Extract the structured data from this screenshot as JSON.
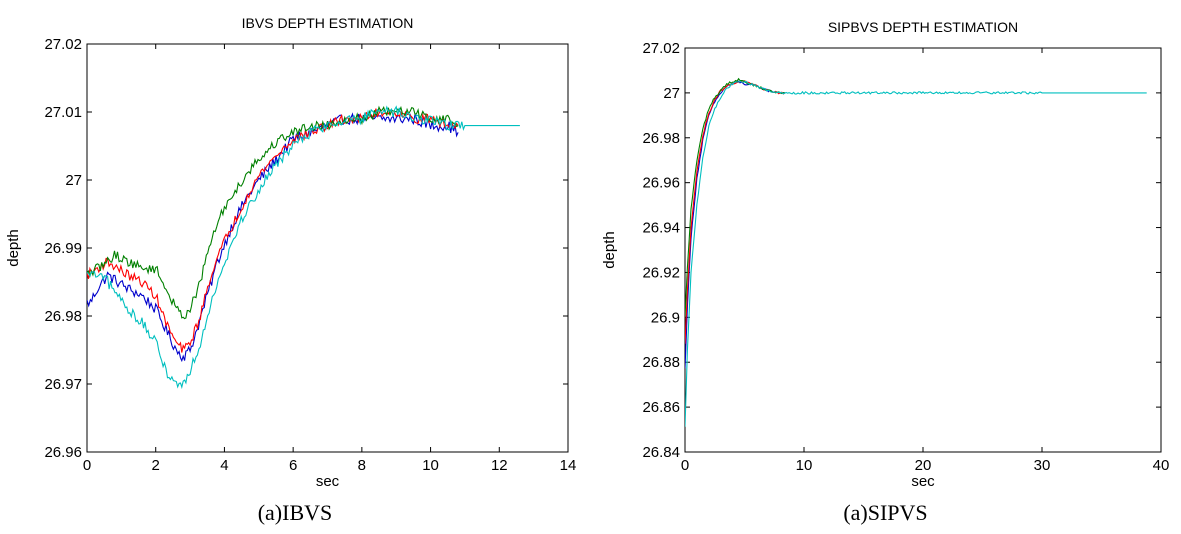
{
  "chart_data": [
    {
      "type": "line",
      "title": "IBVS DEPTH ESTIMATION",
      "xlabel": "sec",
      "ylabel": "depth",
      "xlim": [
        0,
        14
      ],
      "ylim": [
        26.96,
        27.02
      ],
      "xticks": [
        "0",
        "2",
        "4",
        "6",
        "8",
        "10",
        "12",
        "14"
      ],
      "yticks": [
        "26.96",
        "26.97",
        "26.98",
        "26.99",
        "27",
        "27.01",
        "27.02"
      ],
      "grid": false,
      "series": [
        {
          "color": "#0000cc",
          "noise": 0.0008,
          "x": [
            0,
            0.1,
            0.3,
            0.6,
            0.9,
            1.2,
            1.6,
            2.0,
            2.3,
            2.6,
            2.8,
            3.0,
            3.2,
            3.5,
            3.8,
            4.2,
            4.6,
            5.0,
            5.5,
            6.0,
            6.5,
            7.0,
            7.5,
            8.0,
            8.5,
            9.0,
            9.5,
            10.0,
            10.5,
            10.8
          ],
          "y": [
            26.982,
            26.982,
            26.984,
            26.986,
            26.985,
            26.984,
            26.983,
            26.981,
            26.978,
            26.975,
            26.974,
            26.975,
            26.978,
            26.983,
            26.988,
            26.993,
            26.997,
            27.0,
            27.003,
            27.006,
            27.007,
            27.008,
            27.009,
            27.009,
            27.009,
            27.009,
            27.009,
            27.008,
            27.008,
            27.007
          ]
        },
        {
          "color": "#ff0000",
          "noise": 0.0007,
          "x": [
            0,
            0.3,
            0.6,
            0.9,
            1.2,
            1.6,
            2.0,
            2.3,
            2.6,
            2.8,
            3.0,
            3.3,
            3.6,
            4.0,
            4.4,
            4.8,
            5.2,
            5.6,
            6.0,
            6.5,
            7.0,
            7.5,
            8.0,
            8.5,
            9.0,
            9.5,
            10.0,
            10.5,
            10.8
          ],
          "y": [
            26.986,
            26.987,
            26.988,
            26.987,
            26.986,
            26.985,
            26.983,
            26.979,
            26.976,
            26.975,
            26.976,
            26.98,
            26.986,
            26.991,
            26.995,
            26.999,
            27.002,
            27.004,
            27.006,
            27.007,
            27.008,
            27.009,
            27.009,
            27.01,
            27.01,
            27.009,
            27.009,
            27.008,
            27.008
          ]
        },
        {
          "color": "#008000",
          "noise": 0.0007,
          "x": [
            0,
            0.3,
            0.6,
            0.8,
            1.2,
            1.6,
            2.0,
            2.3,
            2.6,
            2.8,
            3.0,
            3.3,
            3.6,
            4.0,
            4.4,
            4.8,
            5.2,
            5.6,
            6.0,
            6.5,
            7.0,
            7.5,
            8.0,
            8.5,
            9.0,
            9.5,
            10.0,
            10.5,
            10.8
          ],
          "y": [
            26.986,
            26.987,
            26.988,
            26.989,
            26.988,
            26.987,
            26.987,
            26.984,
            26.981,
            26.98,
            26.981,
            26.985,
            26.991,
            26.996,
            26.999,
            27.002,
            27.004,
            27.006,
            27.007,
            27.008,
            27.008,
            27.009,
            27.009,
            27.01,
            27.01,
            27.01,
            27.009,
            27.009,
            27.008
          ]
        },
        {
          "color": "#00bfbf",
          "noise": 0.0008,
          "x": [
            0,
            0.3,
            0.6,
            0.9,
            1.2,
            1.6,
            2.0,
            2.3,
            2.6,
            2.8,
            3.0,
            3.3,
            3.6,
            4.0,
            4.4,
            4.8,
            5.2,
            5.6,
            6.0,
            6.5,
            7.0,
            7.5,
            8.0,
            8.5,
            9.0,
            9.5,
            10.0,
            10.5,
            11.0,
            12.6
          ],
          "y": [
            26.986,
            26.986,
            26.985,
            26.983,
            26.981,
            26.979,
            26.976,
            26.972,
            26.97,
            26.97,
            26.972,
            26.976,
            26.982,
            26.988,
            26.993,
            26.997,
            27.0,
            27.003,
            27.005,
            27.007,
            27.008,
            27.009,
            27.009,
            27.01,
            27.01,
            27.009,
            27.009,
            27.008,
            27.008,
            27.008
          ]
        }
      ]
    },
    {
      "type": "line",
      "title": "SIPBVS DEPTH ESTIMATION",
      "xlabel": "sec",
      "ylabel": "depth",
      "xlim": [
        0,
        40
      ],
      "ylim": [
        26.84,
        27.02
      ],
      "xticks": [
        "0",
        "10",
        "20",
        "30",
        "40"
      ],
      "yticks": [
        "26.84",
        "26.86",
        "26.88",
        "26.9",
        "26.92",
        "26.94",
        "26.96",
        "26.98",
        "27",
        "27.02"
      ],
      "grid": false,
      "series": [
        {
          "color": "#0000cc",
          "noise": 0.0005,
          "x": [
            0,
            0.2,
            0.5,
            1.0,
            1.5,
            2.0,
            2.5,
            3.0,
            3.5,
            4.0,
            4.5,
            5.0,
            6.0,
            7.0,
            8.0,
            8.4
          ],
          "y": [
            26.877,
            26.905,
            26.935,
            26.962,
            26.979,
            26.99,
            26.996,
            27.0,
            27.003,
            27.004,
            27.005,
            27.004,
            27.003,
            27.001,
            27.0,
            27.0
          ]
        },
        {
          "color": "#ff0000",
          "noise": 0.0005,
          "x": [
            0,
            0.2,
            0.5,
            1.0,
            1.5,
            2.0,
            2.5,
            3.0,
            3.5,
            4.0,
            4.5,
            5.0,
            6.0,
            7.0,
            8.0,
            8.4
          ],
          "y": [
            26.888,
            26.912,
            26.94,
            26.965,
            26.981,
            26.991,
            26.997,
            27.001,
            27.003,
            27.004,
            27.005,
            27.005,
            27.003,
            27.001,
            27.0,
            27.0
          ]
        },
        {
          "color": "#008000",
          "noise": 0.0005,
          "x": [
            0,
            0.2,
            0.5,
            1.0,
            1.5,
            2.0,
            2.5,
            3.0,
            3.5,
            4.0,
            4.5,
            5.0,
            6.0,
            7.0,
            8.0,
            8.4
          ],
          "y": [
            26.9,
            26.922,
            26.948,
            26.97,
            26.984,
            26.993,
            26.998,
            27.001,
            27.004,
            27.005,
            27.006,
            27.005,
            27.003,
            27.001,
            27.0,
            27.0
          ]
        },
        {
          "color": "#00bfbf",
          "noise": 0.0005,
          "x": [
            0,
            0.2,
            0.5,
            1.0,
            1.5,
            2.0,
            2.5,
            3.0,
            3.5,
            4.0,
            4.5,
            5.0,
            6.0,
            7.0,
            8.0,
            10.0,
            20.0,
            30.0,
            38.8
          ],
          "y": [
            26.851,
            26.885,
            26.92,
            26.95,
            26.971,
            26.985,
            26.993,
            26.998,
            27.002,
            27.004,
            27.005,
            27.005,
            27.003,
            27.001,
            27.0,
            27.0,
            27.0,
            27.0,
            27.0
          ]
        }
      ]
    }
  ],
  "captions": {
    "left": "(a)IBVS",
    "right": "(a)SIPVS"
  }
}
